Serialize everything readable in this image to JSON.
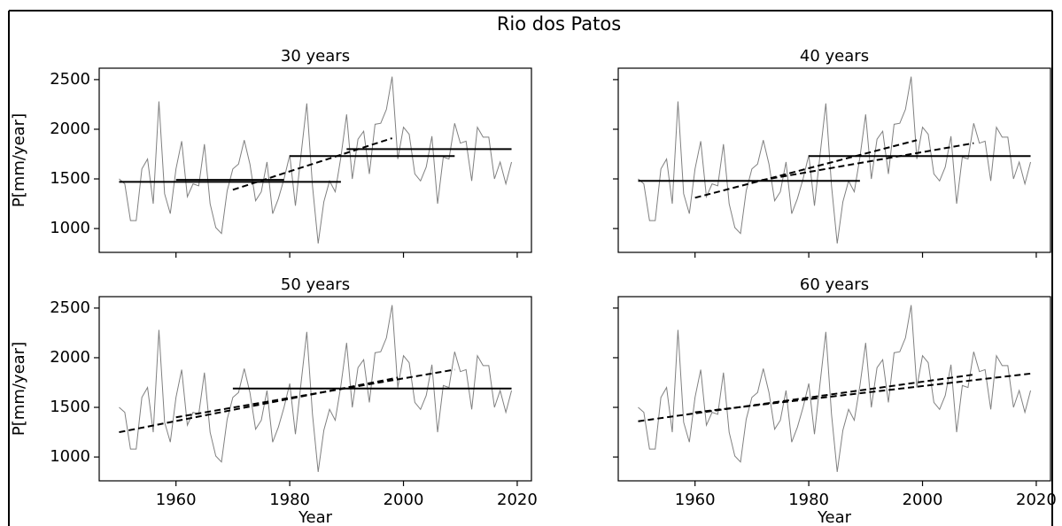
{
  "title": "Rio dos Patos",
  "chart_data": [
    {
      "type": "line",
      "title": "30 years",
      "ylabel": "P[mm/year]",
      "x": [
        1950,
        1951,
        1952,
        1953,
        1954,
        1955,
        1956,
        1957,
        1958,
        1959,
        1960,
        1961,
        1962,
        1963,
        1964,
        1965,
        1966,
        1967,
        1968,
        1969,
        1970,
        1971,
        1972,
        1973,
        1974,
        1975,
        1976,
        1977,
        1978,
        1979,
        1980,
        1981,
        1982,
        1983,
        1984,
        1985,
        1986,
        1987,
        1988,
        1989,
        1990,
        1991,
        1992,
        1993,
        1994,
        1995,
        1996,
        1997,
        1998,
        1999,
        2000,
        2001,
        2002,
        2003,
        2004,
        2005,
        2006,
        2007,
        2008,
        2009,
        2010,
        2011,
        2012,
        2013,
        2014,
        2015,
        2016,
        2017,
        2018,
        2019
      ],
      "series": [
        {
          "color": "#808080",
          "style": "solid",
          "values": [
            1500,
            1450,
            1080,
            1080,
            1600,
            1700,
            1250,
            2280,
            1350,
            1150,
            1600,
            1880,
            1320,
            1450,
            1430,
            1850,
            1250,
            1010,
            950,
            1380,
            1600,
            1650,
            1890,
            1650,
            1280,
            1370,
            1670,
            1150,
            1300,
            1500,
            1740,
            1230,
            1750,
            2260,
            1430,
            850,
            1270,
            1480,
            1370,
            1720,
            2150,
            1500,
            1900,
            1980,
            1550,
            2050,
            2060,
            2200,
            2530,
            1700,
            2020,
            1950,
            1550,
            1480,
            1620,
            1930,
            1250,
            1720,
            1700,
            2060,
            1860,
            1880,
            1480,
            2020,
            1920,
            1920,
            1500,
            1670,
            1450,
            1670
          ]
        },
        {
          "color": "#000000",
          "style": "solid",
          "x": [
            1950,
            1989
          ],
          "values": [
            1470,
            1470
          ]
        },
        {
          "color": "#000000",
          "style": "solid",
          "x": [
            1960,
            1979
          ],
          "values": [
            1490,
            1490
          ]
        },
        {
          "color": "#000000",
          "style": "solid",
          "x": [
            1980,
            2009
          ],
          "values": [
            1730,
            1730
          ]
        },
        {
          "color": "#000000",
          "style": "solid",
          "x": [
            1990,
            2019
          ],
          "values": [
            1800,
            1800
          ]
        },
        {
          "color": "#000000",
          "style": "dashed",
          "x": [
            1970,
            1998
          ],
          "values": [
            1390,
            1910
          ]
        }
      ],
      "xlim": [
        1946.5,
        2022.5
      ],
      "ylim": [
        760,
        2615
      ],
      "xticks": [
        1960,
        1980,
        2000,
        2020
      ],
      "yticks": [
        1000,
        1500,
        2000,
        2500
      ]
    },
    {
      "type": "line",
      "title": "40 years",
      "x": [
        1950,
        1951,
        1952,
        1953,
        1954,
        1955,
        1956,
        1957,
        1958,
        1959,
        1960,
        1961,
        1962,
        1963,
        1964,
        1965,
        1966,
        1967,
        1968,
        1969,
        1970,
        1971,
        1972,
        1973,
        1974,
        1975,
        1976,
        1977,
        1978,
        1979,
        1980,
        1981,
        1982,
        1983,
        1984,
        1985,
        1986,
        1987,
        1988,
        1989,
        1990,
        1991,
        1992,
        1993,
        1994,
        1995,
        1996,
        1997,
        1998,
        1999,
        2000,
        2001,
        2002,
        2003,
        2004,
        2005,
        2006,
        2007,
        2008,
        2009,
        2010,
        2011,
        2012,
        2013,
        2014,
        2015,
        2016,
        2017,
        2018,
        2019
      ],
      "series": [
        {
          "color": "#808080",
          "style": "solid",
          "values": [
            1500,
            1450,
            1080,
            1080,
            1600,
            1700,
            1250,
            2280,
            1350,
            1150,
            1600,
            1880,
            1320,
            1450,
            1430,
            1850,
            1250,
            1010,
            950,
            1380,
            1600,
            1650,
            1890,
            1650,
            1280,
            1370,
            1670,
            1150,
            1300,
            1500,
            1740,
            1230,
            1750,
            2260,
            1430,
            850,
            1270,
            1480,
            1370,
            1720,
            2150,
            1500,
            1900,
            1980,
            1550,
            2050,
            2060,
            2200,
            2530,
            1700,
            2020,
            1950,
            1550,
            1480,
            1620,
            1930,
            1250,
            1720,
            1700,
            2060,
            1860,
            1880,
            1480,
            2020,
            1920,
            1920,
            1500,
            1670,
            1450,
            1670
          ]
        },
        {
          "color": "#000000",
          "style": "solid",
          "x": [
            1950,
            1989
          ],
          "values": [
            1480,
            1480
          ]
        },
        {
          "color": "#000000",
          "style": "solid",
          "x": [
            1980,
            2019
          ],
          "values": [
            1730,
            1730
          ]
        },
        {
          "color": "#000000",
          "style": "dashed",
          "x": [
            1960,
            1999
          ],
          "values": [
            1310,
            1890
          ]
        },
        {
          "color": "#000000",
          "style": "dashed",
          "x": [
            1970,
            2009
          ],
          "values": [
            1470,
            1860
          ]
        }
      ],
      "xlim": [
        1946.5,
        2022.5
      ],
      "ylim": [
        760,
        2615
      ],
      "xticks": [
        1960,
        1980,
        2000,
        2020
      ],
      "yticks": [
        1000,
        1500,
        2000,
        2500
      ]
    },
    {
      "type": "line",
      "title": "50 years",
      "ylabel": "P[mm/year]",
      "xlabel": "Year",
      "x": [
        1950,
        1951,
        1952,
        1953,
        1954,
        1955,
        1956,
        1957,
        1958,
        1959,
        1960,
        1961,
        1962,
        1963,
        1964,
        1965,
        1966,
        1967,
        1968,
        1969,
        1970,
        1971,
        1972,
        1973,
        1974,
        1975,
        1976,
        1977,
        1978,
        1979,
        1980,
        1981,
        1982,
        1983,
        1984,
        1985,
        1986,
        1987,
        1988,
        1989,
        1990,
        1991,
        1992,
        1993,
        1994,
        1995,
        1996,
        1997,
        1998,
        1999,
        2000,
        2001,
        2002,
        2003,
        2004,
        2005,
        2006,
        2007,
        2008,
        2009,
        2010,
        2011,
        2012,
        2013,
        2014,
        2015,
        2016,
        2017,
        2018,
        2019
      ],
      "series": [
        {
          "color": "#808080",
          "style": "solid",
          "values": [
            1500,
            1450,
            1080,
            1080,
            1600,
            1700,
            1250,
            2280,
            1350,
            1150,
            1600,
            1880,
            1320,
            1450,
            1430,
            1850,
            1250,
            1010,
            950,
            1380,
            1600,
            1650,
            1890,
            1650,
            1280,
            1370,
            1670,
            1150,
            1300,
            1500,
            1740,
            1230,
            1750,
            2260,
            1430,
            850,
            1270,
            1480,
            1370,
            1720,
            2150,
            1500,
            1900,
            1980,
            1550,
            2050,
            2060,
            2200,
            2530,
            1700,
            2020,
            1950,
            1550,
            1480,
            1620,
            1930,
            1250,
            1720,
            1700,
            2060,
            1860,
            1880,
            1480,
            2020,
            1920,
            1920,
            1500,
            1670,
            1450,
            1670
          ]
        },
        {
          "color": "#000000",
          "style": "solid",
          "x": [
            1970,
            2019
          ],
          "values": [
            1690,
            1690
          ]
        },
        {
          "color": "#000000",
          "style": "dashed",
          "x": [
            1950,
            1999
          ],
          "values": [
            1250,
            1800
          ]
        },
        {
          "color": "#000000",
          "style": "dashed",
          "x": [
            1960,
            2009
          ],
          "values": [
            1400,
            1880
          ]
        }
      ],
      "xlim": [
        1946.5,
        2022.5
      ],
      "ylim": [
        760,
        2615
      ],
      "xticks": [
        1960,
        1980,
        2000,
        2020
      ],
      "yticks": [
        1000,
        1500,
        2000,
        2500
      ]
    },
    {
      "type": "line",
      "title": "60 years",
      "xlabel": "Year",
      "x": [
        1950,
        1951,
        1952,
        1953,
        1954,
        1955,
        1956,
        1957,
        1958,
        1959,
        1960,
        1961,
        1962,
        1963,
        1964,
        1965,
        1966,
        1967,
        1968,
        1969,
        1970,
        1971,
        1972,
        1973,
        1974,
        1975,
        1976,
        1977,
        1978,
        1979,
        1980,
        1981,
        1982,
        1983,
        1984,
        1985,
        1986,
        1987,
        1988,
        1989,
        1990,
        1991,
        1992,
        1993,
        1994,
        1995,
        1996,
        1997,
        1998,
        1999,
        2000,
        2001,
        2002,
        2003,
        2004,
        2005,
        2006,
        2007,
        2008,
        2009,
        2010,
        2011,
        2012,
        2013,
        2014,
        2015,
        2016,
        2017,
        2018,
        2019
      ],
      "series": [
        {
          "color": "#808080",
          "style": "solid",
          "values": [
            1500,
            1450,
            1080,
            1080,
            1600,
            1700,
            1250,
            2280,
            1350,
            1150,
            1600,
            1880,
            1320,
            1450,
            1430,
            1850,
            1250,
            1010,
            950,
            1380,
            1600,
            1650,
            1890,
            1650,
            1280,
            1370,
            1670,
            1150,
            1300,
            1500,
            1740,
            1230,
            1750,
            2260,
            1430,
            850,
            1270,
            1480,
            1370,
            1720,
            2150,
            1500,
            1900,
            1980,
            1550,
            2050,
            2060,
            2200,
            2530,
            1700,
            2020,
            1950,
            1550,
            1480,
            1620,
            1930,
            1250,
            1720,
            1700,
            2060,
            1860,
            1880,
            1480,
            2020,
            1920,
            1920,
            1500,
            1670,
            1450,
            1670
          ]
        },
        {
          "color": "#000000",
          "style": "dashed",
          "x": [
            1950,
            2009
          ],
          "values": [
            1360,
            1830
          ]
        },
        {
          "color": "#000000",
          "style": "dashed",
          "x": [
            1960,
            2019
          ],
          "values": [
            1450,
            1840
          ]
        }
      ],
      "xlim": [
        1946.5,
        2022.5
      ],
      "ylim": [
        760,
        2615
      ],
      "xticks": [
        1960,
        1980,
        2000,
        2020
      ],
      "yticks": [
        1000,
        1500,
        2000,
        2500
      ]
    }
  ]
}
